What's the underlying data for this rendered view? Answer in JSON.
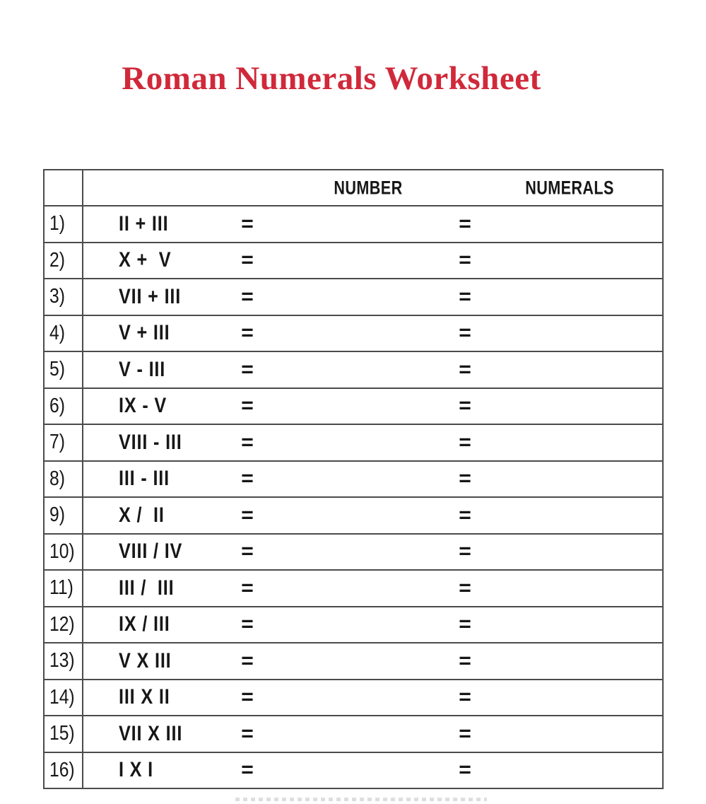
{
  "title": {
    "text": "Roman Numerals Worksheet",
    "color": "#d0293a"
  },
  "table": {
    "header": {
      "number_label": "NUMBER",
      "numerals_label": "NUMERALS"
    },
    "equals_sign": "=",
    "rows": [
      {
        "num": "1)",
        "expr": "II + III"
      },
      {
        "num": "2)",
        "expr": "X +  V"
      },
      {
        "num": "3)",
        "expr": "VII + III"
      },
      {
        "num": "4)",
        "expr": "V + III"
      },
      {
        "num": "5)",
        "expr": "V - III"
      },
      {
        "num": "6)",
        "expr": "IX - V"
      },
      {
        "num": "7)",
        "expr": "VIII - III"
      },
      {
        "num": "8)",
        "expr": "III - III"
      },
      {
        "num": "9)",
        "expr": "X /  II"
      },
      {
        "num": "10)",
        "expr": "VIII / IV"
      },
      {
        "num": "11)",
        "expr": "III /  III"
      },
      {
        "num": "12)",
        "expr": "IX / III"
      },
      {
        "num": "13)",
        "expr": "V X III"
      },
      {
        "num": "14)",
        "expr": "III X II"
      },
      {
        "num": "15)",
        "expr": "VII X III"
      },
      {
        "num": "16)",
        "expr": "I X I"
      }
    ]
  }
}
